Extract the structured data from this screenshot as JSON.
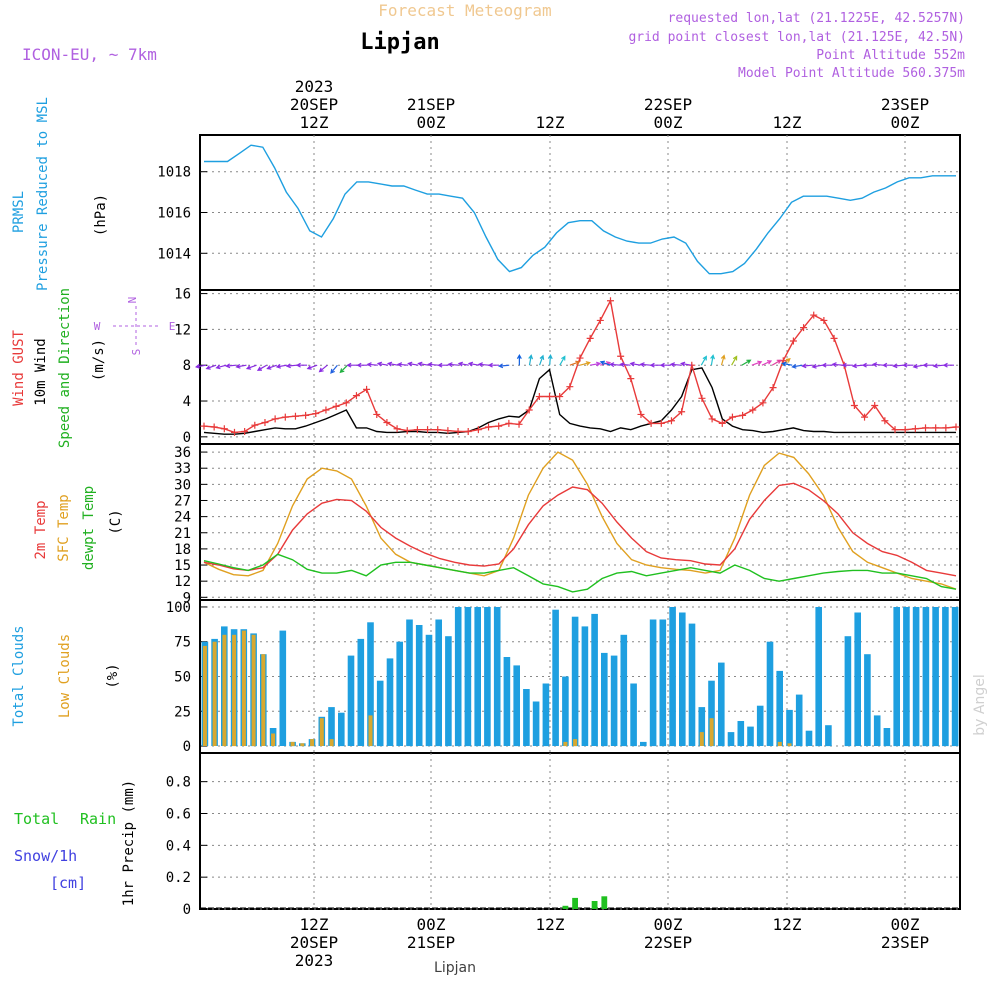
{
  "header": {
    "title": "Forecast Meteogram",
    "location": "Lipjan",
    "model": "ICON-EU, ~ 7km",
    "requested": "requested lon,lat (21.1225E, 42.5257N)",
    "grid_point": "grid point closest lon,lat (21.125E, 42.5N)",
    "point_altitude": "Point Altitude 552m",
    "model_altitude": "Model Point Altitude 560.375m",
    "watermark": "by Angel",
    "footer_location": "Lipjan"
  },
  "time_axis": {
    "top_year": "2023",
    "ticks": [
      {
        "hour": "12Z",
        "date": "20SEP",
        "year": "2023"
      },
      {
        "hour": "00Z",
        "date": "21SEP",
        "year": ""
      },
      {
        "hour": "12Z",
        "date": "",
        "year": ""
      },
      {
        "hour": "00Z",
        "date": "22SEP",
        "year": ""
      },
      {
        "hour": "12Z",
        "date": "",
        "year": ""
      },
      {
        "hour": "00Z",
        "date": "23SEP",
        "year": ""
      }
    ]
  },
  "panel_labels": {
    "p1": {
      "a": "PRMSL",
      "b": "Pressure Reduced to MSL",
      "unit": "(hPa)"
    },
    "p2": {
      "a": "Wind GUST",
      "b": "10m Wind",
      "c": "Speed and Direction",
      "unit": "(m/s)",
      "n": "N",
      "s": "S",
      "w": "W",
      "e": "E"
    },
    "p3": {
      "a": "2m Temp",
      "b": "SFC Temp",
      "c": "dewpt Temp",
      "unit": "(C)"
    },
    "p4": {
      "a": "Total Clouds",
      "b": "Low Clouds",
      "unit": "(%)"
    },
    "p5": {
      "a": "Total",
      "b": "Rain",
      "c": "Snow/1h",
      "d": "[cm]",
      "unit": "1hr Precip (mm)"
    }
  },
  "colors": {
    "pressure": "#1E9FE0",
    "gust": "#E83A3A",
    "wind": "#000000",
    "temp2m": "#E83A3A",
    "sfc": "#E0A020",
    "dewpt": "#20C020",
    "total_clouds": "#1E9FE0",
    "low_clouds": "#D8A830",
    "rain": "#20C020",
    "snow": "#4040E0",
    "header_title": "#F0C890",
    "header_info": "#B060E0"
  },
  "chart_data": [
    {
      "type": "line",
      "name": "Pressure",
      "ylabel": "(hPa)",
      "ylim": [
        1012.2,
        1019.8
      ],
      "yticks": [
        1014,
        1016,
        1018
      ],
      "grid": true,
      "x": [
        0,
        1,
        2,
        3,
        4,
        5,
        6,
        7,
        8,
        9,
        10,
        11,
        12,
        13,
        14,
        15,
        16,
        17,
        18,
        19,
        20,
        21,
        22,
        23,
        24,
        25,
        26,
        27,
        28,
        29,
        30,
        31,
        32,
        33,
        34,
        35,
        36,
        37,
        38,
        39,
        40,
        41,
        42,
        43,
        44,
        45,
        46,
        47,
        48,
        49,
        50,
        51,
        52,
        53,
        54,
        55,
        56,
        57,
        58,
        59,
        60,
        61,
        62,
        63,
        64
      ],
      "values": [
        1018.5,
        1018.5,
        1018.5,
        1018.9,
        1019.3,
        1019.2,
        1018.2,
        1017.0,
        1016.2,
        1015.1,
        1014.8,
        1015.7,
        1016.9,
        1017.5,
        1017.5,
        1017.4,
        1017.3,
        1017.3,
        1017.1,
        1016.9,
        1016.9,
        1016.8,
        1016.7,
        1016.0,
        1014.8,
        1013.7,
        1013.1,
        1013.3,
        1013.9,
        1014.3,
        1015.0,
        1015.5,
        1015.6,
        1015.6,
        1015.1,
        1014.8,
        1014.6,
        1014.5,
        1014.5,
        1014.7,
        1014.8,
        1014.5,
        1013.6,
        1013.0,
        1013.0,
        1013.1,
        1013.5,
        1014.2,
        1015.0,
        1015.7,
        1016.5,
        1016.8,
        1016.8,
        1016.8,
        1016.7,
        1016.6,
        1016.7,
        1017.0,
        1017.2,
        1017.5,
        1017.7,
        1017.7,
        1017.8,
        1017.8,
        1017.8
      ]
    },
    {
      "type": "line",
      "name": "Wind",
      "ylabel": "(m/s)",
      "ylim": [
        -0.8,
        16.4
      ],
      "yticks": [
        0,
        4,
        8,
        12,
        16
      ],
      "grid": true,
      "series": [
        {
          "name": "Wind GUST",
          "values": [
            1.2,
            1.1,
            0.9,
            0.5,
            0.6,
            1.3,
            1.6,
            2.0,
            2.2,
            2.3,
            2.4,
            2.6,
            3.0,
            3.4,
            3.8,
            4.6,
            5.3,
            2.5,
            1.6,
            0.9,
            0.7,
            0.8,
            0.8,
            0.8,
            0.7,
            0.6,
            0.6,
            0.8,
            1.1,
            1.2,
            1.5,
            1.4,
            3.0,
            4.5,
            4.5,
            4.5,
            5.6,
            8.8,
            11.0,
            13.0,
            15.2,
            9.0,
            6.5,
            2.5,
            1.5,
            1.5,
            1.8,
            2.8,
            8.0,
            4.3,
            2.0,
            1.5,
            2.2,
            2.4,
            3.0,
            3.8,
            5.5,
            8.5,
            10.7,
            12.2,
            13.6,
            13.0,
            11.0,
            8.0,
            3.5,
            2.2,
            3.5,
            1.8,
            0.8,
            0.8,
            0.9,
            1.0,
            1.0,
            1.0,
            1.1
          ]
        },
        {
          "name": "10m Wind",
          "values": [
            0.5,
            0.4,
            0.3,
            0.3,
            0.4,
            0.6,
            0.8,
            1.0,
            0.9,
            0.9,
            1.2,
            1.6,
            2.0,
            2.5,
            3.0,
            1.0,
            1.0,
            0.6,
            0.5,
            0.5,
            0.6,
            0.6,
            0.5,
            0.5,
            0.4,
            0.5,
            0.6,
            1.0,
            1.6,
            2.0,
            2.3,
            2.2,
            3.0,
            6.5,
            7.5,
            2.5,
            1.5,
            1.2,
            1.0,
            0.9,
            0.6,
            1.0,
            0.8,
            1.2,
            1.5,
            1.8,
            3.0,
            4.5,
            7.5,
            7.7,
            5.5,
            2.0,
            1.2,
            0.8,
            0.7,
            0.5,
            0.6,
            0.8,
            1.0,
            0.7,
            0.6,
            0.6,
            0.5,
            0.5,
            0.5,
            0.5,
            0.5,
            0.5,
            0.5,
            0.5,
            0.5,
            0.5,
            0.5,
            0.5,
            0.5
          ]
        }
      ]
    },
    {
      "type": "line",
      "name": "Temperature",
      "ylabel": "(C)",
      "ylim": [
        8.5,
        37.5
      ],
      "yticks": [
        9,
        12,
        15,
        18,
        21,
        24,
        27,
        30,
        33,
        36
      ],
      "grid": true,
      "series": [
        {
          "name": "2m Temp",
          "values": [
            15.5,
            15.0,
            14.3,
            14.0,
            14.5,
            17.0,
            21.5,
            24.5,
            26.5,
            27.2,
            27.0,
            25.0,
            22.0,
            20.0,
            18.5,
            17.2,
            16.2,
            15.5,
            15.0,
            14.8,
            15.2,
            18.0,
            22.5,
            26.0,
            28.0,
            29.5,
            29.0,
            26.5,
            23.0,
            20.0,
            17.5,
            16.3,
            16.0,
            15.8,
            15.2,
            15.0,
            18.0,
            23.5,
            27.0,
            29.8,
            30.2,
            29.0,
            27.0,
            24.5,
            21.0,
            19.0,
            17.5,
            16.8,
            15.5,
            14.0,
            13.5,
            13.0
          ]
        },
        {
          "name": "SFC Temp",
          "values": [
            15.5,
            14.2,
            13.2,
            13.0,
            14.0,
            19.0,
            26.0,
            31.0,
            33.0,
            32.5,
            31.0,
            26.0,
            20.0,
            17.0,
            15.5,
            15.0,
            14.5,
            14.0,
            13.5,
            13.0,
            14.0,
            20.0,
            28.0,
            33.0,
            36.0,
            34.5,
            30.0,
            24.0,
            19.0,
            16.0,
            15.0,
            14.5,
            14.2,
            14.0,
            13.5,
            14.0,
            20.0,
            28.0,
            33.5,
            35.8,
            35.0,
            32.0,
            28.0,
            22.0,
            17.5,
            15.5,
            14.5,
            13.5,
            12.5,
            12.0,
            11.5,
            10.5
          ]
        },
        {
          "name": "dewpt Temp",
          "values": [
            15.8,
            15.2,
            14.5,
            14.0,
            15.0,
            17.0,
            16.0,
            14.2,
            13.5,
            13.5,
            14.0,
            13.0,
            15.0,
            15.5,
            15.5,
            15.0,
            14.5,
            14.0,
            13.5,
            13.5,
            14.0,
            14.5,
            13.0,
            11.5,
            11.0,
            10.0,
            10.5,
            12.5,
            13.5,
            13.8,
            13.0,
            13.5,
            14.0,
            14.5,
            14.0,
            13.5,
            15.0,
            14.0,
            12.5,
            12.0,
            12.5,
            13.0,
            13.5,
            13.8,
            14.0,
            14.0,
            13.5,
            13.5,
            13.0,
            12.5,
            11.0,
            10.5
          ]
        }
      ]
    },
    {
      "type": "bar",
      "name": "Clouds",
      "ylabel": "(%)",
      "ylim": [
        -5,
        105
      ],
      "yticks": [
        0,
        25,
        50,
        75,
        100
      ],
      "grid": true,
      "series": [
        {
          "name": "Total Clouds",
          "values": [
            75,
            77,
            86,
            84,
            84,
            81,
            66,
            13,
            83,
            3,
            2,
            5,
            21,
            28,
            24,
            65,
            77,
            89,
            47,
            63,
            75,
            91,
            87,
            80,
            91,
            79,
            100,
            100,
            100,
            100,
            100,
            64,
            58,
            41,
            32,
            45,
            98,
            50,
            93,
            86,
            95,
            67,
            65,
            80,
            45,
            3,
            91,
            91,
            100,
            96,
            88,
            28,
            47,
            60,
            10,
            18,
            14,
            29,
            75,
            54,
            26,
            37,
            11,
            100,
            15,
            0,
            79,
            96,
            66,
            22,
            13,
            100,
            100,
            100,
            100,
            100,
            100,
            100
          ]
        },
        {
          "name": "Low Clouds",
          "values": [
            72,
            75,
            80,
            80,
            83,
            80,
            66,
            9,
            0,
            3,
            2,
            5,
            20,
            5,
            0,
            0,
            0,
            22,
            0,
            0,
            0,
            0,
            0,
            0,
            0,
            0,
            0,
            0,
            0,
            0,
            0,
            0,
            0,
            0,
            0,
            0,
            0,
            3,
            5,
            0,
            0,
            0,
            0,
            0,
            0,
            0,
            0,
            0,
            0,
            0,
            0,
            10,
            20,
            0,
            0,
            0,
            0,
            0,
            0,
            3,
            2,
            0,
            0,
            0,
            0,
            0,
            0,
            0,
            0,
            0,
            0,
            0,
            0,
            0,
            0,
            0,
            0,
            0
          ]
        }
      ]
    },
    {
      "type": "bar",
      "name": "Precipitation",
      "ylabel": "1hr Precip (mm)",
      "ylim": [
        0,
        0.98
      ],
      "yticks": [
        "0",
        "0.2",
        "0.4",
        "0.6",
        "0.8"
      ],
      "grid": true,
      "series": [
        {
          "name": "Total Rain",
          "values": [
            0,
            0,
            0,
            0,
            0,
            0,
            0,
            0,
            0,
            0,
            0,
            0,
            0,
            0,
            0,
            0,
            0,
            0,
            0,
            0,
            0,
            0,
            0,
            0,
            0,
            0,
            0,
            0,
            0,
            0,
            0,
            0,
            0,
            0,
            0,
            0,
            0,
            0.02,
            0.07,
            0,
            0.05,
            0.08,
            0,
            0,
            0,
            0,
            0,
            0,
            0,
            0,
            0,
            0,
            0,
            0,
            0,
            0,
            0,
            0,
            0,
            0,
            0,
            0,
            0,
            0,
            0,
            0,
            0,
            0,
            0,
            0,
            0,
            0,
            0,
            0,
            0,
            0,
            0,
            0
          ]
        }
      ]
    }
  ],
  "wind_arrows": [
    {
      "a": 190,
      "c": "#8A2BE2"
    },
    {
      "a": 200,
      "c": "#8A2BE2"
    },
    {
      "a": 195,
      "c": "#8A2BE2"
    },
    {
      "a": 185,
      "c": "#8A2BE2"
    },
    {
      "a": 190,
      "c": "#8A2BE2"
    },
    {
      "a": 200,
      "c": "#8A2BE2"
    },
    {
      "a": 210,
      "c": "#8A2BE2"
    },
    {
      "a": 200,
      "c": "#8A2BE2"
    },
    {
      "a": 190,
      "c": "#8A2BE2"
    },
    {
      "a": 185,
      "c": "#8A2BE2"
    },
    {
      "a": 180,
      "c": "#8A2BE2"
    },
    {
      "a": 200,
      "c": "#8A2BE2"
    },
    {
      "a": 220,
      "c": "#8A2BE2"
    },
    {
      "a": 230,
      "c": "#2060E0"
    },
    {
      "a": 225,
      "c": "#20B040"
    },
    {
      "a": 180,
      "c": "#8A2BE2"
    },
    {
      "a": 180,
      "c": "#8A2BE2"
    },
    {
      "a": 175,
      "c": "#8A2BE2"
    },
    {
      "a": 170,
      "c": "#8A2BE2"
    },
    {
      "a": 170,
      "c": "#8A2BE2"
    },
    {
      "a": 175,
      "c": "#8A2BE2"
    },
    {
      "a": 170,
      "c": "#8A2BE2"
    },
    {
      "a": 170,
      "c": "#8A2BE2"
    },
    {
      "a": 175,
      "c": "#8A2BE2"
    },
    {
      "a": 180,
      "c": "#8A2BE2"
    },
    {
      "a": 175,
      "c": "#8A2BE2"
    },
    {
      "a": 170,
      "c": "#8A2BE2"
    },
    {
      "a": 170,
      "c": "#8A2BE2"
    },
    {
      "a": 175,
      "c": "#8A2BE2"
    },
    {
      "a": 180,
      "c": "#8A2BE2"
    },
    {
      "a": 185,
      "c": "#2060E0"
    },
    {
      "a": 90,
      "c": "#1060E0"
    },
    {
      "a": 80,
      "c": "#20B0D0"
    },
    {
      "a": 70,
      "c": "#20B0D0"
    },
    {
      "a": 85,
      "c": "#20B0D0"
    },
    {
      "a": 60,
      "c": "#20C0D0"
    },
    {
      "a": 20,
      "c": "#E07020"
    },
    {
      "a": 15,
      "c": "#E0A020"
    },
    {
      "a": 10,
      "c": "#C040E0"
    },
    {
      "a": 15,
      "c": "#E040C0"
    },
    {
      "a": 160,
      "c": "#1060E0"
    },
    {
      "a": 175,
      "c": "#8A2BE2"
    },
    {
      "a": 175,
      "c": "#8A2BE2"
    },
    {
      "a": 170,
      "c": "#8A2BE2"
    },
    {
      "a": 175,
      "c": "#8A2BE2"
    },
    {
      "a": 180,
      "c": "#8A2BE2"
    },
    {
      "a": 180,
      "c": "#8A2BE2"
    },
    {
      "a": 175,
      "c": "#8A2BE2"
    },
    {
      "a": 170,
      "c": "#8A2BE2"
    },
    {
      "a": 60,
      "c": "#20C0D0"
    },
    {
      "a": 80,
      "c": "#20C0D0"
    },
    {
      "a": 75,
      "c": "#E0A020"
    },
    {
      "a": 60,
      "c": "#A0C020"
    },
    {
      "a": 30,
      "c": "#20B040"
    },
    {
      "a": 20,
      "c": "#E040C0"
    },
    {
      "a": 25,
      "c": "#E040C0"
    },
    {
      "a": 30,
      "c": "#E040A0"
    },
    {
      "a": 40,
      "c": "#E0A020"
    },
    {
      "a": 170,
      "c": "#1060E0"
    },
    {
      "a": 190,
      "c": "#2060E0"
    },
    {
      "a": 185,
      "c": "#8A2BE2"
    },
    {
      "a": 190,
      "c": "#8A2BE2"
    },
    {
      "a": 180,
      "c": "#8A2BE2"
    },
    {
      "a": 175,
      "c": "#8A2BE2"
    },
    {
      "a": 180,
      "c": "#8A2BE2"
    },
    {
      "a": 185,
      "c": "#8A2BE2"
    },
    {
      "a": 180,
      "c": "#8A2BE2"
    },
    {
      "a": 175,
      "c": "#8A2BE2"
    },
    {
      "a": 180,
      "c": "#8A2BE2"
    },
    {
      "a": 185,
      "c": "#8A2BE2"
    },
    {
      "a": 180,
      "c": "#8A2BE2"
    },
    {
      "a": 190,
      "c": "#8A2BE2"
    },
    {
      "a": 180,
      "c": "#8A2BE2"
    },
    {
      "a": 185,
      "c": "#8A2BE2"
    },
    {
      "a": 180,
      "c": "#8A2BE2"
    }
  ]
}
